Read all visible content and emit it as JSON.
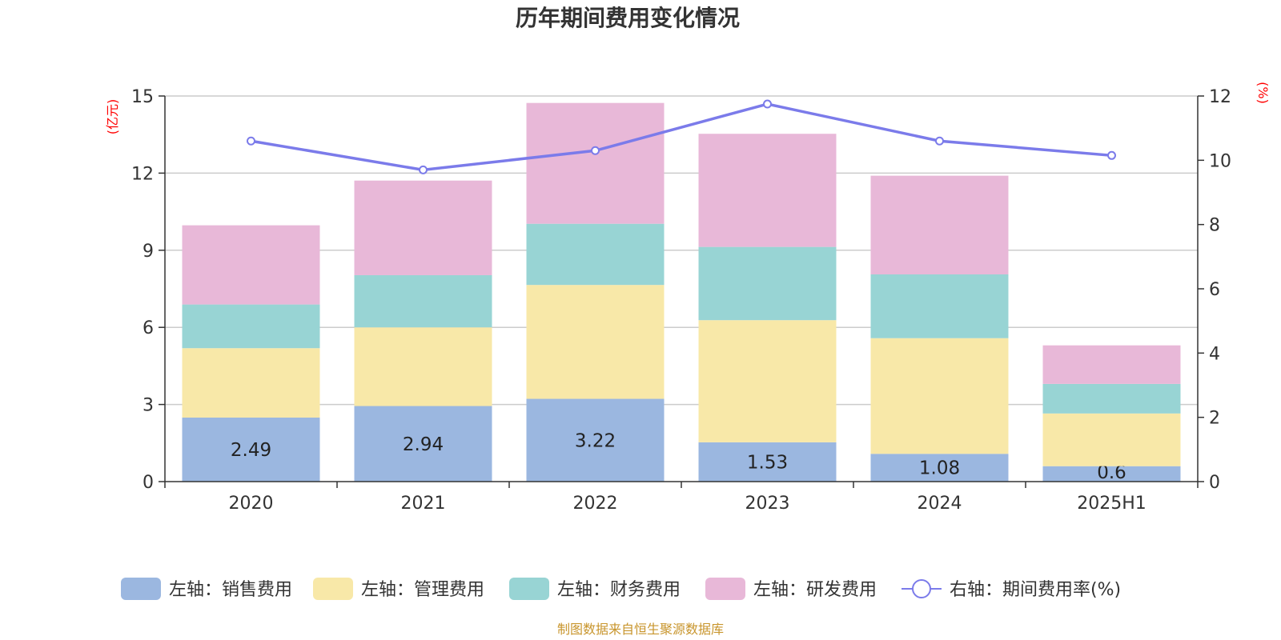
{
  "chart_data": {
    "type": "bar",
    "stacked": true,
    "title": "历年期间费用变化情况",
    "categories": [
      "2020",
      "2021",
      "2022",
      "2023",
      "2024",
      "2025H1"
    ],
    "left_axis": {
      "unit": "(亿元)",
      "range": [
        0,
        15
      ],
      "ticks": [
        "0",
        "3",
        "6",
        "9",
        "12",
        "15"
      ]
    },
    "right_axis": {
      "unit": "(%)",
      "range": [
        0,
        12
      ],
      "ticks": [
        "0",
        "2",
        "4",
        "6",
        "8",
        "10",
        "12"
      ]
    },
    "series": [
      {
        "name": "左轴：销售费用",
        "axis": "left",
        "kind": "bar",
        "color": "#9bb7e0",
        "values": [
          2.49,
          2.94,
          3.22,
          1.53,
          1.08,
          0.6
        ],
        "labels": [
          "2.49",
          "2.94",
          "3.22",
          "1.53",
          "1.08",
          "0.6"
        ]
      },
      {
        "name": "左轴：管理费用",
        "axis": "left",
        "kind": "bar",
        "color": "#f8e8a8",
        "values": [
          2.7,
          3.06,
          4.43,
          4.75,
          4.5,
          2.05
        ]
      },
      {
        "name": "左轴：财务费用",
        "axis": "left",
        "kind": "bar",
        "color": "#98d4d4",
        "values": [
          1.7,
          2.03,
          2.38,
          2.85,
          2.48,
          1.15
        ]
      },
      {
        "name": "左轴：研发费用",
        "axis": "left",
        "kind": "bar",
        "color": "#e8b8d8",
        "values": [
          3.08,
          3.68,
          4.7,
          4.4,
          3.84,
          1.5
        ]
      },
      {
        "name": "右轴：期间费用率(%)",
        "axis": "right",
        "kind": "line",
        "color": "#7b7bea",
        "values": [
          10.6,
          9.7,
          10.3,
          11.75,
          10.6,
          10.15
        ]
      }
    ],
    "grid": true,
    "legend_position": "bottom"
  },
  "source_note": "制图数据来自恒生聚源数据库"
}
